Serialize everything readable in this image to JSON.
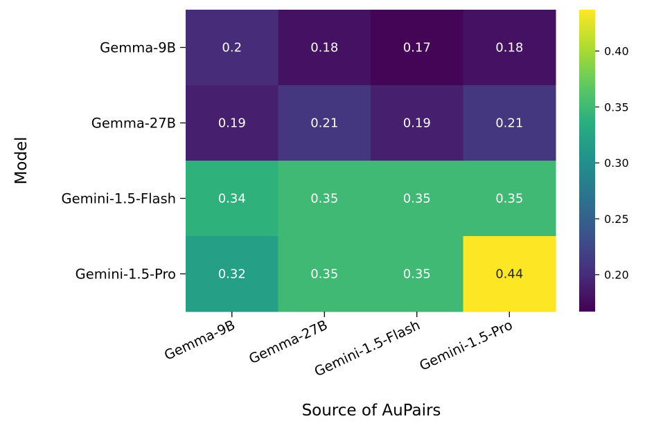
{
  "chart_data": {
    "type": "heatmap",
    "title": "",
    "xlabel": "Source of AuPairs",
    "ylabel": "Model",
    "x_categories": [
      "Gemma-9B",
      "Gemma-27B",
      "Gemini-1.5-Flash",
      "Gemini-1.5-Pro"
    ],
    "y_categories": [
      "Gemma-9B",
      "Gemma-27B",
      "Gemini-1.5-Flash",
      "Gemini-1.5-Pro"
    ],
    "values": [
      [
        0.2,
        0.18,
        0.17,
        0.18
      ],
      [
        0.19,
        0.21,
        0.19,
        0.21
      ],
      [
        0.34,
        0.35,
        0.35,
        0.35
      ],
      [
        0.32,
        0.35,
        0.35,
        0.44
      ]
    ],
    "colormap": "viridis",
    "colorbar_range": [
      0.167,
      0.437
    ],
    "colorbar_ticks": [
      0.2,
      0.25,
      0.3,
      0.35,
      0.4
    ],
    "colorbar_tick_labels": [
      "0.20",
      "0.25",
      "0.30",
      "0.35",
      "0.40"
    ],
    "annotate_cells": true,
    "annotation_colors": {
      "light": "#ffffff",
      "dark": "#262626"
    }
  }
}
